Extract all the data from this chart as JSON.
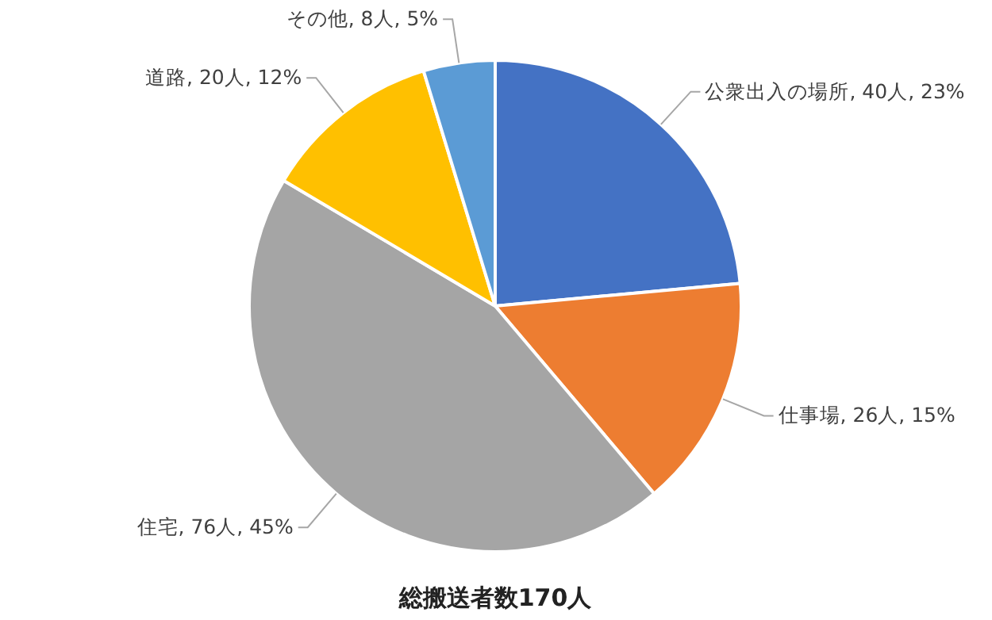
{
  "chart_data": {
    "type": "pie",
    "title": "総搬送者数170人",
    "categories": [
      "公衆出入の場所",
      "仕事場",
      "住宅",
      "道路",
      "その他"
    ],
    "values": [
      40,
      26,
      76,
      20,
      8
    ],
    "value_labels": [
      "40人, 23%",
      "26人, 15%",
      "76人, 45%",
      "20人, 12%",
      "8人, 5%"
    ],
    "colors": [
      "#4472c4",
      "#ed7d31",
      "#a5a5a5",
      "#ffc000",
      "#5b9bd5"
    ],
    "legend": false
  }
}
